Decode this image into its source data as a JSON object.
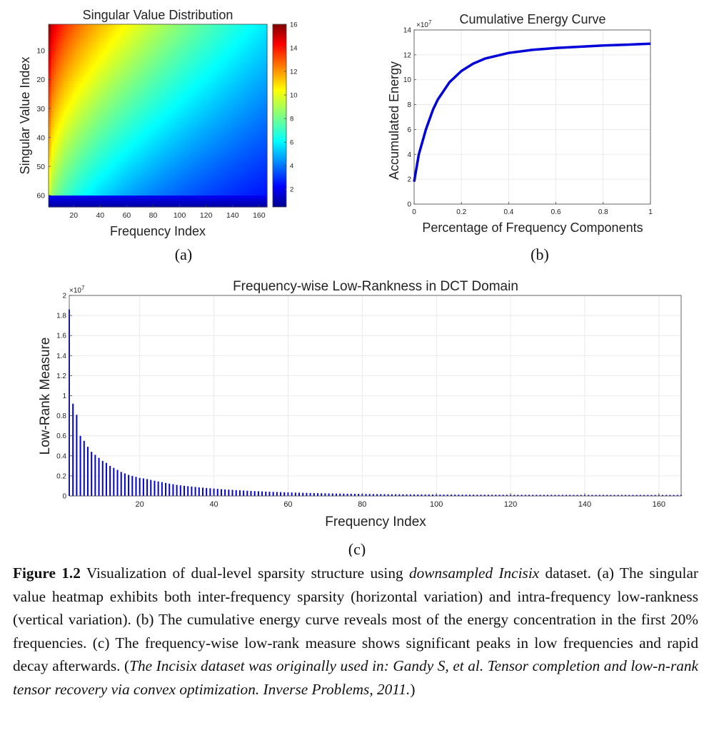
{
  "panels": {
    "a": {
      "label": "(a)"
    },
    "b": {
      "label": "(b)"
    },
    "c": {
      "label": "(c)"
    }
  },
  "chart_data": [
    {
      "type": "heatmap",
      "title": "Singular Value Distribution",
      "xlabel": "Frequency Index",
      "ylabel": "Singular Value Index",
      "xlim": [
        1,
        166
      ],
      "ylim": [
        1,
        64
      ],
      "xticks": [
        20,
        40,
        60,
        80,
        100,
        120,
        140,
        160
      ],
      "yticks": [
        10,
        20,
        30,
        40,
        50,
        60
      ],
      "y_direction": "reversed",
      "colorbar": {
        "range": [
          0.5,
          16
        ],
        "ticks": [
          2,
          4,
          6,
          8,
          10,
          12,
          14,
          16
        ],
        "colormap": "jet"
      },
      "description_values": {
        "top_left": 15.5,
        "top_right": 7.5,
        "mid_left": 11,
        "mid_right": 5.5,
        "bottom_band": 1.5
      }
    },
    {
      "type": "line",
      "title": "Cumulative Energy Curve",
      "xlabel": "Percentage of Frequency Components",
      "ylabel": "Accumulated Energy",
      "xlim": [
        0,
        1
      ],
      "ylim": [
        0,
        14
      ],
      "y_exponent_label": "×10",
      "y_exponent": "7",
      "xticks": [
        0,
        0.2,
        0.4,
        0.6,
        0.8,
        1
      ],
      "xtick_labels": [
        "0",
        "0.2",
        "0.4",
        "0.6",
        "0.8",
        "1"
      ],
      "yticks": [
        0,
        2,
        4,
        6,
        8,
        10,
        12,
        14
      ],
      "grid": true,
      "line_color": "#0000d8",
      "x": [
        0,
        0.02,
        0.05,
        0.08,
        0.1,
        0.15,
        0.2,
        0.25,
        0.3,
        0.4,
        0.5,
        0.6,
        0.7,
        0.8,
        0.9,
        1.0
      ],
      "y": [
        1.8,
        4.0,
        6.0,
        7.6,
        8.4,
        9.8,
        10.7,
        11.3,
        11.7,
        12.15,
        12.4,
        12.55,
        12.65,
        12.75,
        12.82,
        12.9
      ]
    },
    {
      "type": "bar",
      "title": "Frequency-wise Low-Rankness in DCT Domain",
      "xlabel": "Frequency Index",
      "ylabel": "Low-Rank Measure",
      "xlim": [
        1,
        166
      ],
      "ylim": [
        0,
        2
      ],
      "y_exponent_label": "×10",
      "y_exponent": "7",
      "xticks": [
        20,
        40,
        60,
        80,
        100,
        120,
        140,
        160
      ],
      "yticks": [
        0,
        0.2,
        0.4,
        0.6,
        0.8,
        1,
        1.2,
        1.4,
        1.6,
        1.8,
        2
      ],
      "ytick_labels": [
        "0",
        "0.2",
        "0.4",
        "0.6",
        "0.8",
        "1",
        "1.2",
        "1.4",
        "1.6",
        "1.8",
        "2"
      ],
      "grid": true,
      "bar_color": "#0000d8",
      "n_bars": 166,
      "values_head": [
        1.86,
        0.92,
        0.81,
        0.6,
        0.55,
        0.49,
        0.44,
        0.41,
        0.38,
        0.35,
        0.33,
        0.3,
        0.28,
        0.26,
        0.24,
        0.225,
        0.21,
        0.2,
        0.19,
        0.18,
        0.175,
        0.168,
        0.16,
        0.152,
        0.145,
        0.138,
        0.13,
        0.123,
        0.117,
        0.11
      ],
      "tail": {
        "decay_to": 0.01
      }
    }
  ],
  "caption": {
    "fig_label": "Figure 1.2",
    "text1": " Visualization of dual-level sparsity structure using ",
    "italic1": "downsampled Incisix",
    "text2": " dataset. (a) The singular value heatmap exhibits both inter-frequency sparsity (horizontal variation) and intra-frequency low-rankness (vertical variation). (b) The cumulative energy curve reveals most of the energy concentration in the first 20% frequencies. (c) The frequency-wise low-rank measure shows significant peaks in low frequencies and rapid decay afterwards. (",
    "italic2": "The Incisix dataset was originally used in: Gandy S, et al. Tensor completion and low-n-rank tensor recovery via convex optimization. Inverse Problems, 2011.",
    "text3": ")"
  }
}
